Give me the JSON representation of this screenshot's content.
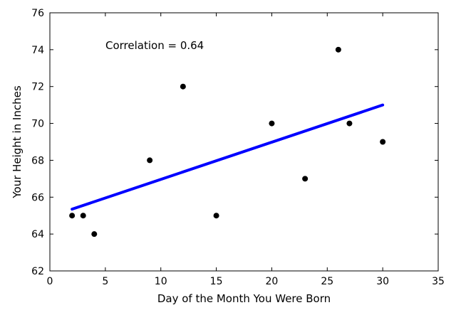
{
  "chart_data": {
    "type": "scatter",
    "xlabel": "Day of the Month You Were Born",
    "ylabel": "Your Height in Inches",
    "xlim": [
      0,
      35
    ],
    "ylim": [
      62,
      76
    ],
    "xticks": [
      0,
      5,
      10,
      15,
      20,
      25,
      30,
      35
    ],
    "yticks": [
      62,
      64,
      66,
      68,
      70,
      72,
      74,
      76
    ],
    "grid": false,
    "annotation": "Correlation = 0.64",
    "points": [
      {
        "x": 2,
        "y": 65
      },
      {
        "x": 3,
        "y": 65
      },
      {
        "x": 4,
        "y": 64
      },
      {
        "x": 9,
        "y": 68
      },
      {
        "x": 12,
        "y": 72
      },
      {
        "x": 15,
        "y": 65
      },
      {
        "x": 20,
        "y": 70
      },
      {
        "x": 23,
        "y": 67
      },
      {
        "x": 26,
        "y": 74
      },
      {
        "x": 27,
        "y": 70
      },
      {
        "x": 30,
        "y": 69
      }
    ],
    "trendline": {
      "x": [
        2,
        30
      ],
      "y": [
        65.35,
        71.0
      ]
    },
    "colors": {
      "points": "#000000",
      "trendline": "#0000ff",
      "axes": "#000000"
    }
  }
}
